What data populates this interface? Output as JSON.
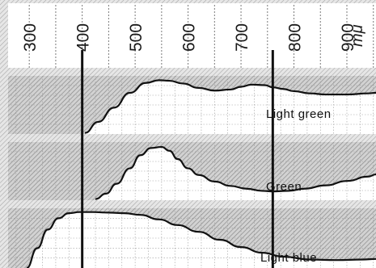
{
  "chart_data": [
    {
      "type": "line",
      "name_label": "Light green",
      "x_unit": "mμ",
      "x_ticks": [
        300,
        400,
        500,
        600,
        700,
        800,
        900
      ],
      "xlim": [
        260,
        955
      ],
      "ylim": [
        0,
        1
      ],
      "marker_lines": [
        400,
        760
      ],
      "grid": true,
      "series": [
        {
          "name": "Light green",
          "x": [
            405,
            430,
            460,
            490,
            520,
            545,
            565,
            590,
            620,
            650,
            680,
            700,
            720,
            745,
            760,
            780,
            800,
            830,
            860,
            900,
            940,
            955
          ],
          "y": [
            0.02,
            0.22,
            0.48,
            0.75,
            0.93,
            0.98,
            0.97,
            0.92,
            0.84,
            0.79,
            0.81,
            0.86,
            0.9,
            0.89,
            0.85,
            0.82,
            0.78,
            0.74,
            0.72,
            0.72,
            0.74,
            0.75
          ]
        }
      ]
    },
    {
      "type": "line",
      "name_label": "Green",
      "x_unit": "mμ",
      "xlim": [
        260,
        955
      ],
      "ylim": [
        0,
        1
      ],
      "marker_lines": [
        400,
        760
      ],
      "grid": true,
      "series": [
        {
          "name": "Green",
          "x": [
            425,
            445,
            465,
            490,
            510,
            530,
            550,
            565,
            580,
            600,
            620,
            650,
            680,
            710,
            740,
            760,
            790,
            820,
            860,
            900,
            940,
            955
          ],
          "y": [
            0.02,
            0.12,
            0.3,
            0.58,
            0.82,
            0.95,
            0.97,
            0.9,
            0.75,
            0.58,
            0.46,
            0.34,
            0.26,
            0.21,
            0.17,
            0.16,
            0.17,
            0.21,
            0.27,
            0.35,
            0.43,
            0.47
          ]
        }
      ]
    },
    {
      "type": "line",
      "name_label": "Light blue",
      "x_unit": "mμ",
      "xlim": [
        260,
        955
      ],
      "ylim": [
        0,
        1
      ],
      "marker_lines": [
        400,
        760
      ],
      "grid": true,
      "series": [
        {
          "name": "Light blue",
          "x": [
            295,
            315,
            335,
            355,
            375,
            395,
            420,
            450,
            480,
            510,
            545,
            580,
            620,
            660,
            700,
            740,
            780,
            830,
            880,
            930,
            955
          ],
          "y": [
            0.0,
            0.35,
            0.68,
            0.88,
            0.97,
            0.99,
            0.99,
            0.98,
            0.97,
            0.94,
            0.86,
            0.76,
            0.64,
            0.5,
            0.37,
            0.27,
            0.2,
            0.15,
            0.14,
            0.15,
            0.16
          ]
        }
      ]
    }
  ]
}
